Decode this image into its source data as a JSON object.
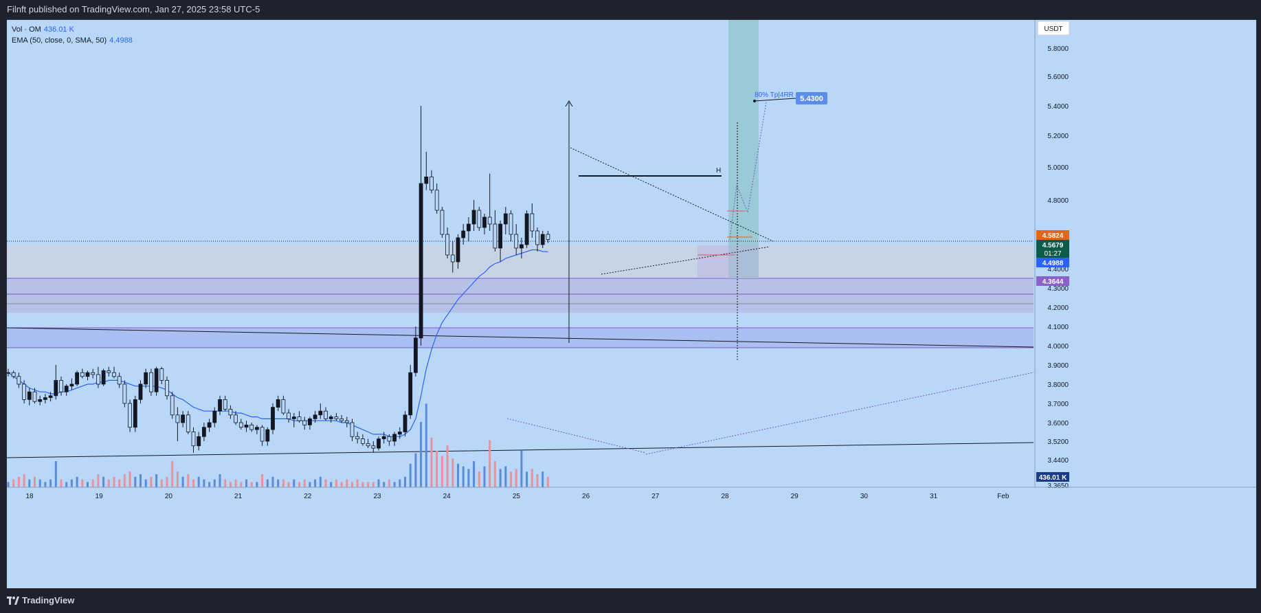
{
  "header": {
    "title": "Filnft published on TradingView.com, Jan 27, 2025 23:58 UTC-5"
  },
  "legend": {
    "vol_label": "Vol · OM",
    "vol_value": "436.01 K",
    "ema_label": "EMA (50, close, 0, SMA, 50)",
    "ema_value": "4.4988"
  },
  "footer": {
    "brand": "TradingView"
  },
  "colors": {
    "background": "#b9d8f9",
    "bull": "#131722",
    "bear": "#131722",
    "ema": "#2962ff",
    "vol_up": "#5b8bd6",
    "vol_down": "#e8929a"
  },
  "chart_data": {
    "type": "candlestick",
    "currency": "USDT",
    "price_ticks": [
      "5.8000",
      "5.6000",
      "5.4000",
      "5.2000",
      "5.0000",
      "4.8000",
      "4.4000",
      "4.3000",
      "4.2000",
      "4.1000",
      "4.0000",
      "3.9000",
      "3.8000",
      "3.7000",
      "3.6000",
      "3.5200",
      "3.4400",
      "3.3650"
    ],
    "time_ticks": [
      "18",
      "19",
      "20",
      "21",
      "22",
      "23",
      "24",
      "25",
      "26",
      "27",
      "28",
      "29",
      "30",
      "31",
      "Feb"
    ],
    "price_labels": [
      {
        "value": "4.5824",
        "bg": "#e2661a"
      },
      {
        "value": "4.5679",
        "bg": "#0b5a4a",
        "sub": "01:27"
      },
      {
        "value": "4.4988",
        "bg": "#2962ff"
      },
      {
        "value": "4.3644",
        "bg": "#8a62c9"
      }
    ],
    "volume_label": "436.01 K",
    "annotations": {
      "target_text": "80% Tp|4RR",
      "target_price": "5.4300",
      "level_mark": "H"
    },
    "ohlc": [
      [
        3.86,
        3.88,
        3.84,
        3.86
      ],
      [
        3.86,
        3.87,
        3.83,
        3.84
      ],
      [
        3.84,
        3.86,
        3.78,
        3.8
      ],
      [
        3.8,
        3.82,
        3.7,
        3.72
      ],
      [
        3.72,
        3.78,
        3.69,
        3.76
      ],
      [
        3.76,
        3.78,
        3.7,
        3.71
      ],
      [
        3.71,
        3.74,
        3.69,
        3.72
      ],
      [
        3.72,
        3.75,
        3.7,
        3.73
      ],
      [
        3.73,
        3.76,
        3.71,
        3.74
      ],
      [
        3.74,
        3.9,
        3.72,
        3.82
      ],
      [
        3.82,
        3.84,
        3.74,
        3.76
      ],
      [
        3.76,
        3.8,
        3.74,
        3.79
      ],
      [
        3.79,
        3.83,
        3.77,
        3.8
      ],
      [
        3.8,
        3.87,
        3.79,
        3.86
      ],
      [
        3.86,
        3.88,
        3.83,
        3.84
      ],
      [
        3.84,
        3.87,
        3.82,
        3.86
      ],
      [
        3.86,
        3.88,
        3.83,
        3.85
      ],
      [
        3.85,
        3.89,
        3.78,
        3.8
      ],
      [
        3.8,
        3.88,
        3.79,
        3.87
      ],
      [
        3.87,
        3.89,
        3.84,
        3.86
      ],
      [
        3.86,
        3.89,
        3.83,
        3.84
      ],
      [
        3.84,
        3.86,
        3.78,
        3.8
      ],
      [
        3.8,
        3.82,
        3.68,
        3.7
      ],
      [
        3.7,
        3.72,
        3.56,
        3.58
      ],
      [
        3.58,
        3.74,
        3.56,
        3.72
      ],
      [
        3.72,
        3.82,
        3.7,
        3.8
      ],
      [
        3.8,
        3.88,
        3.78,
        3.86
      ],
      [
        3.86,
        3.88,
        3.74,
        3.76
      ],
      [
        3.76,
        3.89,
        3.74,
        3.88
      ],
      [
        3.88,
        3.89,
        3.8,
        3.82
      ],
      [
        3.82,
        3.84,
        3.72,
        3.74
      ],
      [
        3.74,
        3.76,
        3.62,
        3.64
      ],
      [
        3.64,
        3.68,
        3.52,
        3.6
      ],
      [
        3.6,
        3.66,
        3.58,
        3.64
      ],
      [
        3.64,
        3.66,
        3.55,
        3.56
      ],
      [
        3.56,
        3.58,
        3.47,
        3.5
      ],
      [
        3.5,
        3.56,
        3.48,
        3.54
      ],
      [
        3.54,
        3.6,
        3.52,
        3.58
      ],
      [
        3.58,
        3.62,
        3.56,
        3.6
      ],
      [
        3.6,
        3.68,
        3.58,
        3.66
      ],
      [
        3.66,
        3.74,
        3.64,
        3.72
      ],
      [
        3.72,
        3.74,
        3.66,
        3.67
      ],
      [
        3.67,
        3.69,
        3.62,
        3.64
      ],
      [
        3.64,
        3.66,
        3.59,
        3.6
      ],
      [
        3.6,
        3.62,
        3.57,
        3.58
      ],
      [
        3.58,
        3.61,
        3.56,
        3.59
      ],
      [
        3.59,
        3.6,
        3.56,
        3.57
      ],
      [
        3.57,
        3.59,
        3.55,
        3.58
      ],
      [
        3.58,
        3.59,
        3.5,
        3.52
      ],
      [
        3.52,
        3.58,
        3.5,
        3.57
      ],
      [
        3.57,
        3.7,
        3.55,
        3.68
      ],
      [
        3.68,
        3.74,
        3.66,
        3.72
      ],
      [
        3.72,
        3.74,
        3.64,
        3.65
      ],
      [
        3.65,
        3.67,
        3.6,
        3.62
      ],
      [
        3.62,
        3.65,
        3.58,
        3.63
      ],
      [
        3.63,
        3.66,
        3.6,
        3.61
      ],
      [
        3.61,
        3.63,
        3.57,
        3.59
      ],
      [
        3.59,
        3.63,
        3.57,
        3.62
      ],
      [
        3.62,
        3.66,
        3.6,
        3.64
      ],
      [
        3.64,
        3.7,
        3.62,
        3.66
      ],
      [
        3.66,
        3.68,
        3.61,
        3.62
      ],
      [
        3.62,
        3.64,
        3.6,
        3.63
      ],
      [
        3.63,
        3.65,
        3.61,
        3.62
      ],
      [
        3.62,
        3.64,
        3.6,
        3.61
      ],
      [
        3.61,
        3.63,
        3.58,
        3.6
      ],
      [
        3.6,
        3.62,
        3.52,
        3.54
      ],
      [
        3.54,
        3.56,
        3.51,
        3.53
      ],
      [
        3.53,
        3.55,
        3.5,
        3.51
      ],
      [
        3.51,
        3.53,
        3.49,
        3.5
      ],
      [
        3.5,
        3.52,
        3.47,
        3.49
      ],
      [
        3.49,
        3.54,
        3.48,
        3.53
      ],
      [
        3.53,
        3.56,
        3.51,
        3.54
      ],
      [
        3.54,
        3.55,
        3.5,
        3.52
      ],
      [
        3.52,
        3.56,
        3.5,
        3.55
      ],
      [
        3.55,
        3.58,
        3.53,
        3.56
      ],
      [
        3.56,
        3.66,
        3.54,
        3.64
      ],
      [
        3.64,
        3.9,
        3.62,
        3.86
      ],
      [
        3.86,
        4.1,
        3.84,
        4.04
      ],
      [
        4.04,
        5.4,
        4.0,
        4.9
      ],
      [
        4.9,
        5.1,
        4.86,
        4.94
      ],
      [
        4.94,
        4.98,
        4.84,
        4.86
      ],
      [
        4.86,
        4.9,
        4.72,
        4.74
      ],
      [
        4.74,
        4.76,
        4.58,
        4.6
      ],
      [
        4.6,
        4.64,
        4.46,
        4.48
      ],
      [
        4.48,
        4.56,
        4.38,
        4.44
      ],
      [
        4.44,
        4.6,
        4.4,
        4.58
      ],
      [
        4.58,
        4.66,
        4.54,
        4.62
      ],
      [
        4.62,
        4.7,
        4.56,
        4.66
      ],
      [
        4.66,
        4.8,
        4.62,
        4.74
      ],
      [
        4.74,
        4.76,
        4.62,
        4.64
      ],
      [
        4.64,
        4.72,
        4.6,
        4.7
      ],
      [
        4.7,
        4.96,
        4.62,
        4.66
      ],
      [
        4.66,
        4.74,
        4.5,
        4.52
      ],
      [
        4.52,
        4.68,
        4.44,
        4.66
      ],
      [
        4.66,
        4.76,
        4.6,
        4.72
      ],
      [
        4.72,
        4.74,
        4.56,
        4.6
      ],
      [
        4.6,
        4.66,
        4.48,
        4.52
      ],
      [
        4.52,
        4.58,
        4.46,
        4.54
      ],
      [
        4.54,
        4.74,
        4.52,
        4.72
      ],
      [
        4.72,
        4.78,
        4.58,
        4.62
      ],
      [
        4.62,
        4.64,
        4.5,
        4.54
      ],
      [
        4.54,
        4.62,
        4.52,
        4.6
      ],
      [
        4.6,
        4.62,
        4.55,
        4.57
      ]
    ],
    "ema": [
      3.86,
      3.84,
      3.82,
      3.8,
      3.78,
      3.77,
      3.76,
      3.76,
      3.75,
      3.75,
      3.76,
      3.76,
      3.77,
      3.78,
      3.79,
      3.8,
      3.8,
      3.81,
      3.81,
      3.82,
      3.82,
      3.82,
      3.81,
      3.8,
      3.79,
      3.79,
      3.79,
      3.79,
      3.79,
      3.78,
      3.77,
      3.75,
      3.73,
      3.72,
      3.7,
      3.68,
      3.67,
      3.66,
      3.66,
      3.66,
      3.66,
      3.66,
      3.66,
      3.65,
      3.65,
      3.64,
      3.63,
      3.63,
      3.62,
      3.62,
      3.62,
      3.62,
      3.62,
      3.62,
      3.61,
      3.61,
      3.61,
      3.61,
      3.61,
      3.61,
      3.61,
      3.61,
      3.61,
      3.6,
      3.6,
      3.59,
      3.58,
      3.57,
      3.56,
      3.55,
      3.55,
      3.55,
      3.54,
      3.54,
      3.54,
      3.55,
      3.57,
      3.62,
      3.74,
      3.88,
      3.98,
      4.06,
      4.12,
      4.16,
      4.2,
      4.24,
      4.27,
      4.3,
      4.33,
      4.36,
      4.38,
      4.41,
      4.43,
      4.44,
      4.46,
      4.47,
      4.48,
      4.49,
      4.5,
      4.51,
      4.51,
      4.5,
      4.4988
    ],
    "volume": [
      0.2,
      0.3,
      0.4,
      0.5,
      0.3,
      0.4,
      0.3,
      0.2,
      0.3,
      1.0,
      0.3,
      0.2,
      0.3,
      0.4,
      0.3,
      0.2,
      0.3,
      0.5,
      0.4,
      0.3,
      0.4,
      0.3,
      0.5,
      0.6,
      0.4,
      0.5,
      0.3,
      0.4,
      0.5,
      0.3,
      0.4,
      1.0,
      0.6,
      0.4,
      0.5,
      0.3,
      0.4,
      0.3,
      0.2,
      0.3,
      0.5,
      0.3,
      0.2,
      0.3,
      0.2,
      0.3,
      0.2,
      0.2,
      0.5,
      0.3,
      0.4,
      0.3,
      0.3,
      0.2,
      0.3,
      0.2,
      0.3,
      0.2,
      0.3,
      0.4,
      0.3,
      0.2,
      0.3,
      0.2,
      0.3,
      0.2,
      0.3,
      0.2,
      0.2,
      0.2,
      0.3,
      0.2,
      0.3,
      0.2,
      0.3,
      0.4,
      0.9,
      1.3,
      2.5,
      3.2,
      1.9,
      1.4,
      1.2,
      1.6,
      1.1,
      0.9,
      0.8,
      0.7,
      1.0,
      0.6,
      0.8,
      1.8,
      1.0,
      0.7,
      0.8,
      0.6,
      0.7,
      1.4,
      0.6,
      0.7,
      0.5,
      0.6,
      0.4
    ]
  }
}
